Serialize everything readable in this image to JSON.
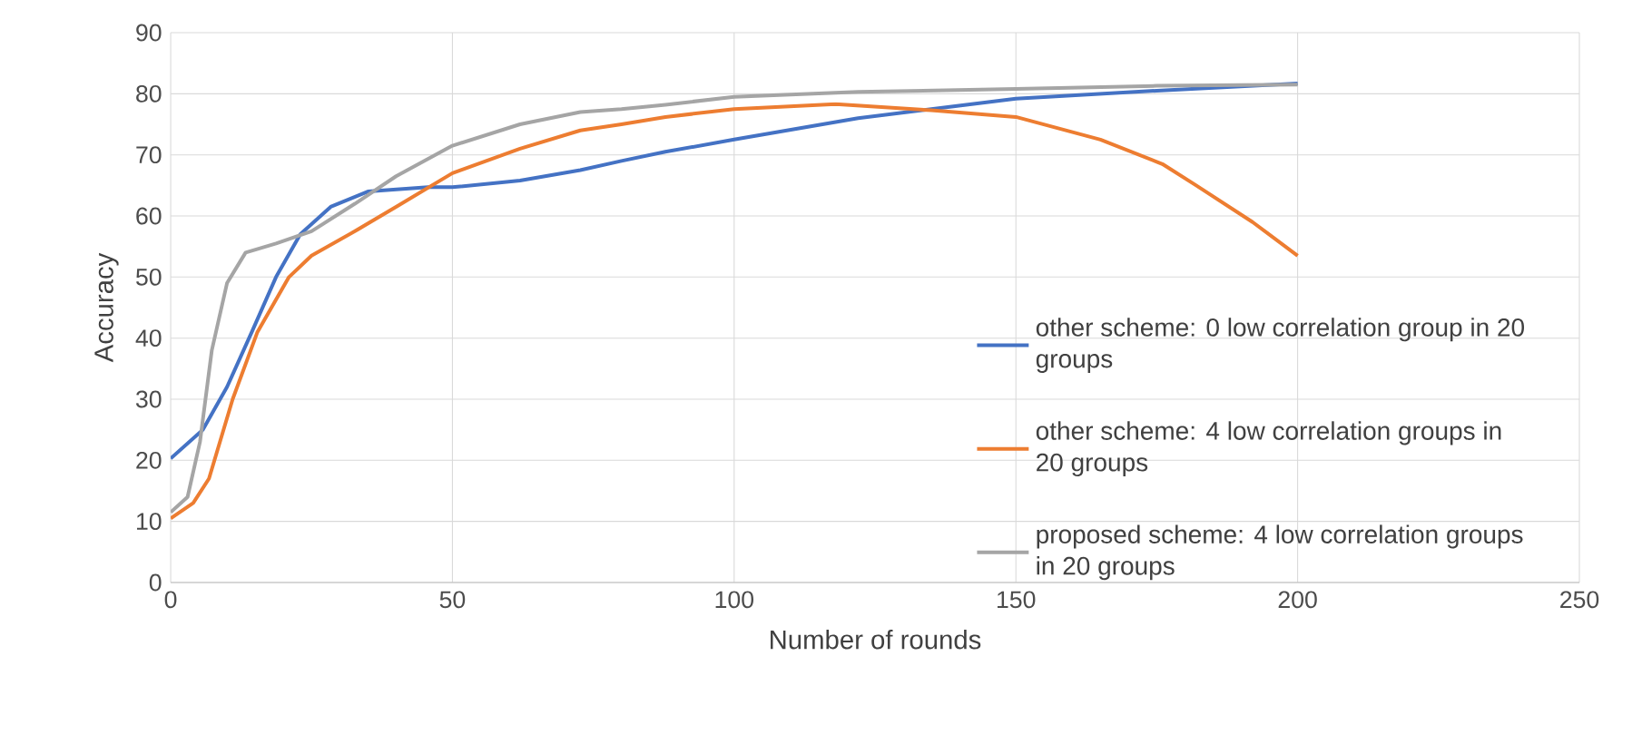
{
  "chart_data": {
    "type": "line",
    "xlabel": "Number of rounds",
    "ylabel": "Accuracy",
    "xlim": [
      0,
      250
    ],
    "ylim": [
      0,
      90
    ],
    "xticks": [
      0,
      50,
      100,
      150,
      200,
      250
    ],
    "yticks": [
      0,
      10,
      20,
      30,
      40,
      50,
      60,
      70,
      80,
      90
    ],
    "grid": true,
    "legend": "right",
    "line_style": "solid",
    "series": [
      {
        "name": "other scheme: 0 low correlation group in 20 groups",
        "color": "#4472c4",
        "x": [
          0,
          5.7,
          10,
          14.4,
          18.7,
          23,
          28.4,
          35,
          45.7,
          50,
          62,
          72.7,
          80,
          87.8,
          100,
          122,
          135,
          150,
          175,
          200
        ],
        "values": [
          20.3,
          25,
          32,
          41,
          50,
          57,
          61.5,
          64,
          64.7,
          64.7,
          65.8,
          67.5,
          69,
          70.5,
          72.5,
          76,
          77.5,
          79.2,
          80.5,
          81.7
        ]
      },
      {
        "name": "other scheme: 4 low correlation groups in 20 groups",
        "color": "#ed7d31",
        "x": [
          0,
          4,
          6.8,
          11,
          15.4,
          21,
          25,
          32.7,
          40,
          50,
          62,
          72.7,
          80,
          87.8,
          100,
          118,
          135,
          150,
          165,
          176,
          182,
          192,
          200
        ],
        "values": [
          10.5,
          13,
          17,
          30,
          41,
          50,
          53.5,
          57.5,
          61.5,
          67,
          71,
          74,
          75,
          76.2,
          77.5,
          78.3,
          77.3,
          76.2,
          72.5,
          68.5,
          65,
          59,
          53.5
        ]
      },
      {
        "name": "proposed scheme: 4 low correlation groups in 20 groups",
        "color": "#a5a5a5",
        "x": [
          0,
          3,
          5.2,
          7.3,
          10,
          13.3,
          18.7,
          25,
          32.7,
          40,
          50,
          62,
          72.7,
          80,
          87.8,
          100,
          122,
          150,
          175,
          200
        ],
        "values": [
          11.5,
          14,
          23,
          38,
          49,
          54,
          55.5,
          57.5,
          62,
          66.5,
          71.5,
          75,
          77,
          77.5,
          78.2,
          79.5,
          80.3,
          80.8,
          81.3,
          81.5
        ]
      }
    ]
  }
}
